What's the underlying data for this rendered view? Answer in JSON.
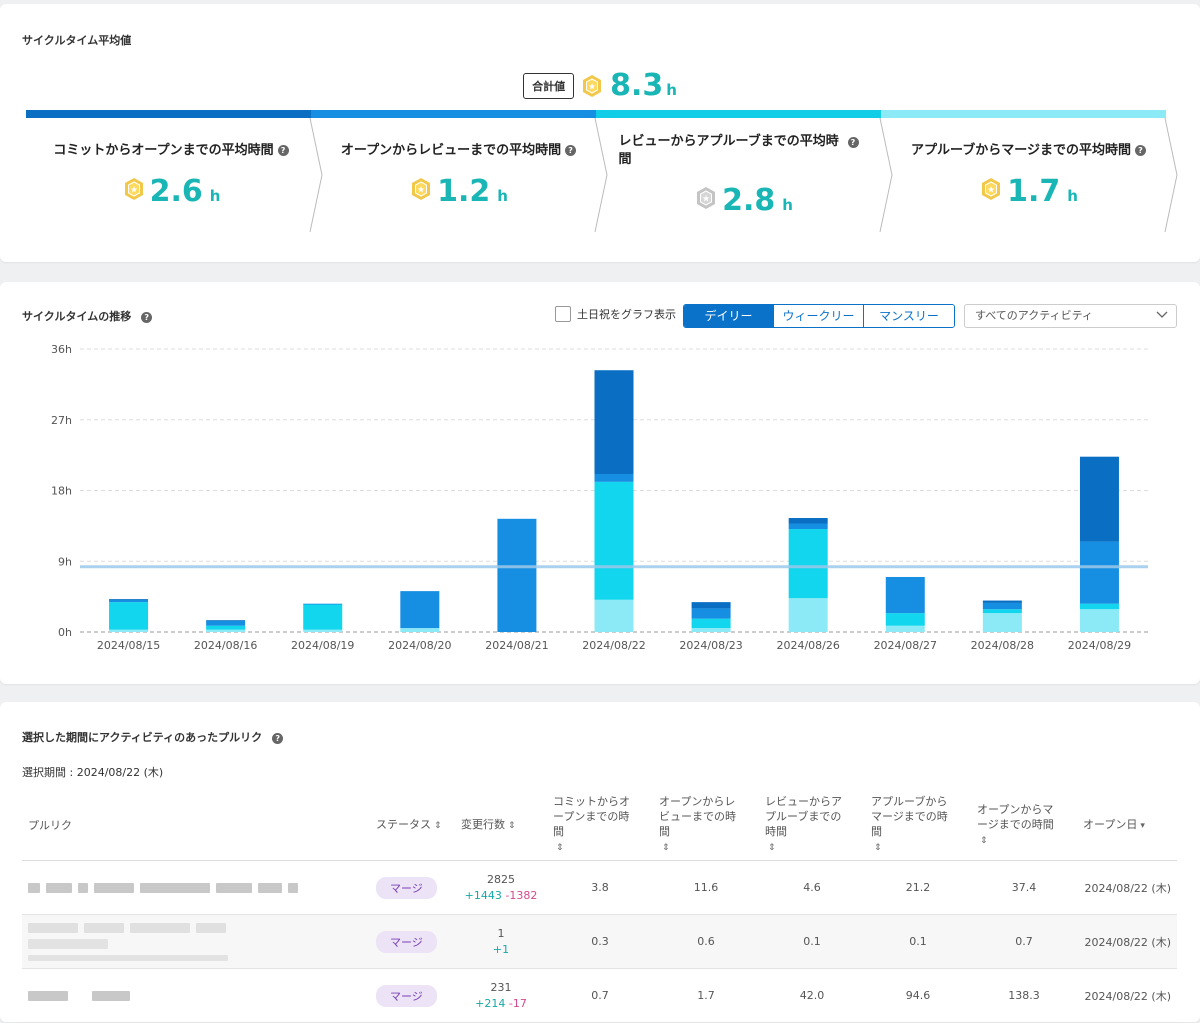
{
  "summary": {
    "title": "サイクルタイム平均値",
    "total_label": "合計値",
    "total_value": "8.3",
    "unit": "h",
    "phases": [
      {
        "title": "コミットからオープンまでの平均時間",
        "value": "2.6",
        "medal": "gold",
        "color": "#0a6fc2"
      },
      {
        "title": "オープンからレビューまでの平均時間",
        "value": "1.2",
        "medal": "gold",
        "color": "#168fe3"
      },
      {
        "title": "レビューからアプルーブまでの平均時間",
        "value": "2.8",
        "medal": "silver",
        "color": "#12cde8"
      },
      {
        "title": "アプルーブからマージまでの平均時間",
        "value": "1.7",
        "medal": "gold",
        "color": "#8ceaf6"
      }
    ]
  },
  "trend": {
    "title": "サイクルタイムの推移",
    "weekend_label": "土日祝をグラフ表示",
    "tabs": [
      "デイリー",
      "ウィークリー",
      "マンスリー"
    ],
    "active_tab": 0,
    "activity_select": "すべてのアクティビティ"
  },
  "chart_data": {
    "type": "bar",
    "stacked": true,
    "categories": [
      "2024/08/15",
      "2024/08/16",
      "2024/08/19",
      "2024/08/20",
      "2024/08/21",
      "2024/08/22",
      "2024/08/23",
      "2024/08/26",
      "2024/08/27",
      "2024/08/28",
      "2024/08/29"
    ],
    "series": [
      {
        "name": "アプルーブからマージ",
        "color": "#8ceaf6",
        "values": [
          0.3,
          0.3,
          0.3,
          0.5,
          0,
          4.1,
          0.5,
          4.3,
          0.8,
          2.4,
          2.9
        ]
      },
      {
        "name": "レビューからアプルーブ",
        "color": "#12d5ee",
        "values": [
          3.5,
          0.5,
          3.2,
          0,
          0,
          15.0,
          1.2,
          8.8,
          1.6,
          0.5,
          0.7
        ]
      },
      {
        "name": "オープンからレビュー",
        "color": "#168fe3",
        "values": [
          0.3,
          0.6,
          0.1,
          4.7,
          14.4,
          1.0,
          1.3,
          0.7,
          4.6,
          0.8,
          7.9
        ]
      },
      {
        "name": "コミットからオープン",
        "color": "#0a6fc2",
        "values": [
          0.1,
          0.1,
          0,
          0,
          0,
          13.2,
          0.8,
          0.7,
          0,
          0.3,
          10.8
        ]
      }
    ],
    "average": 8.3,
    "ylim": [
      0,
      36
    ],
    "yticks": [
      0,
      9,
      18,
      27,
      36
    ],
    "ytick_labels": [
      "0h",
      "9h",
      "18h",
      "27h",
      "36h"
    ]
  },
  "table": {
    "title": "選択した期間にアクティビティのあったプルリク",
    "period": "選択期間 : 2024/08/22 (木)",
    "headers": [
      "プルリク",
      "ステータス",
      "変更行数",
      "コミットからオープンまでの時間",
      "オープンからレビューまでの時間",
      "レビューからアプルーブまでの時間",
      "アプルーブからマージまでの時間",
      "オープンからマージまでの時間",
      "オープン日"
    ],
    "rows": [
      {
        "status": "マージ",
        "lines": "2825",
        "add": "+1443",
        "del": "-1382",
        "c1": "3.8",
        "c2": "11.6",
        "c3": "4.6",
        "c4": "21.2",
        "c5": "37.4",
        "date": "2024/08/22 (木)"
      },
      {
        "status": "マージ",
        "lines": "1",
        "add": "+1",
        "del": "",
        "c1": "0.3",
        "c2": "0.6",
        "c3": "0.1",
        "c4": "0.1",
        "c5": "0.7",
        "date": "2024/08/22 (木)"
      },
      {
        "status": "マージ",
        "lines": "231",
        "add": "+214",
        "del": "-17",
        "c1": "0.7",
        "c2": "1.7",
        "c3": "42.0",
        "c4": "94.6",
        "c5": "138.3",
        "date": "2024/08/22 (木)"
      }
    ]
  }
}
